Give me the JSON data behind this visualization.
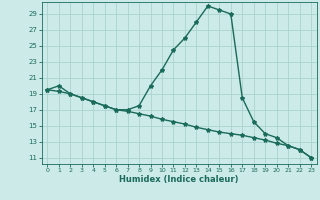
{
  "xlabel": "Humidex (Indice chaleur)",
  "background_color": "#cceae7",
  "grid_color": "#aad4cf",
  "line_color": "#1a6b5a",
  "x_ticks": [
    0,
    1,
    2,
    3,
    4,
    5,
    6,
    7,
    8,
    9,
    10,
    11,
    12,
    13,
    14,
    15,
    16,
    17,
    18,
    19,
    20,
    21,
    22,
    23
  ],
  "y_ticks": [
    11,
    13,
    15,
    17,
    19,
    21,
    23,
    25,
    27,
    29
  ],
  "ylim": [
    10.2,
    30.5
  ],
  "xlim": [
    -0.5,
    23.5
  ],
  "curve1_x": [
    0,
    1,
    2,
    3,
    4,
    5,
    6,
    7,
    8,
    9,
    10,
    11,
    12,
    13,
    14,
    15,
    16,
    17,
    18,
    19,
    20,
    21,
    22,
    23
  ],
  "curve1_y": [
    19.5,
    20.0,
    19.0,
    18.5,
    18.0,
    17.5,
    17.0,
    17.0,
    17.5,
    20.0,
    22.0,
    24.5,
    26.0,
    28.0,
    30.0,
    29.5,
    29.0,
    18.5,
    15.5,
    14.0,
    13.5,
    12.5,
    12.0,
    11.0
  ],
  "curve2_x": [
    0,
    1,
    2,
    3,
    4,
    5,
    6,
    7,
    8,
    9,
    10,
    11,
    12,
    13,
    14,
    15,
    16,
    17,
    18,
    19,
    20,
    21,
    22,
    23
  ],
  "curve2_y": [
    19.5,
    19.3,
    19.0,
    18.5,
    18.0,
    17.5,
    17.0,
    16.8,
    16.5,
    16.2,
    15.8,
    15.5,
    15.2,
    14.8,
    14.5,
    14.2,
    14.0,
    13.8,
    13.5,
    13.2,
    12.8,
    12.5,
    12.0,
    11.0
  ]
}
